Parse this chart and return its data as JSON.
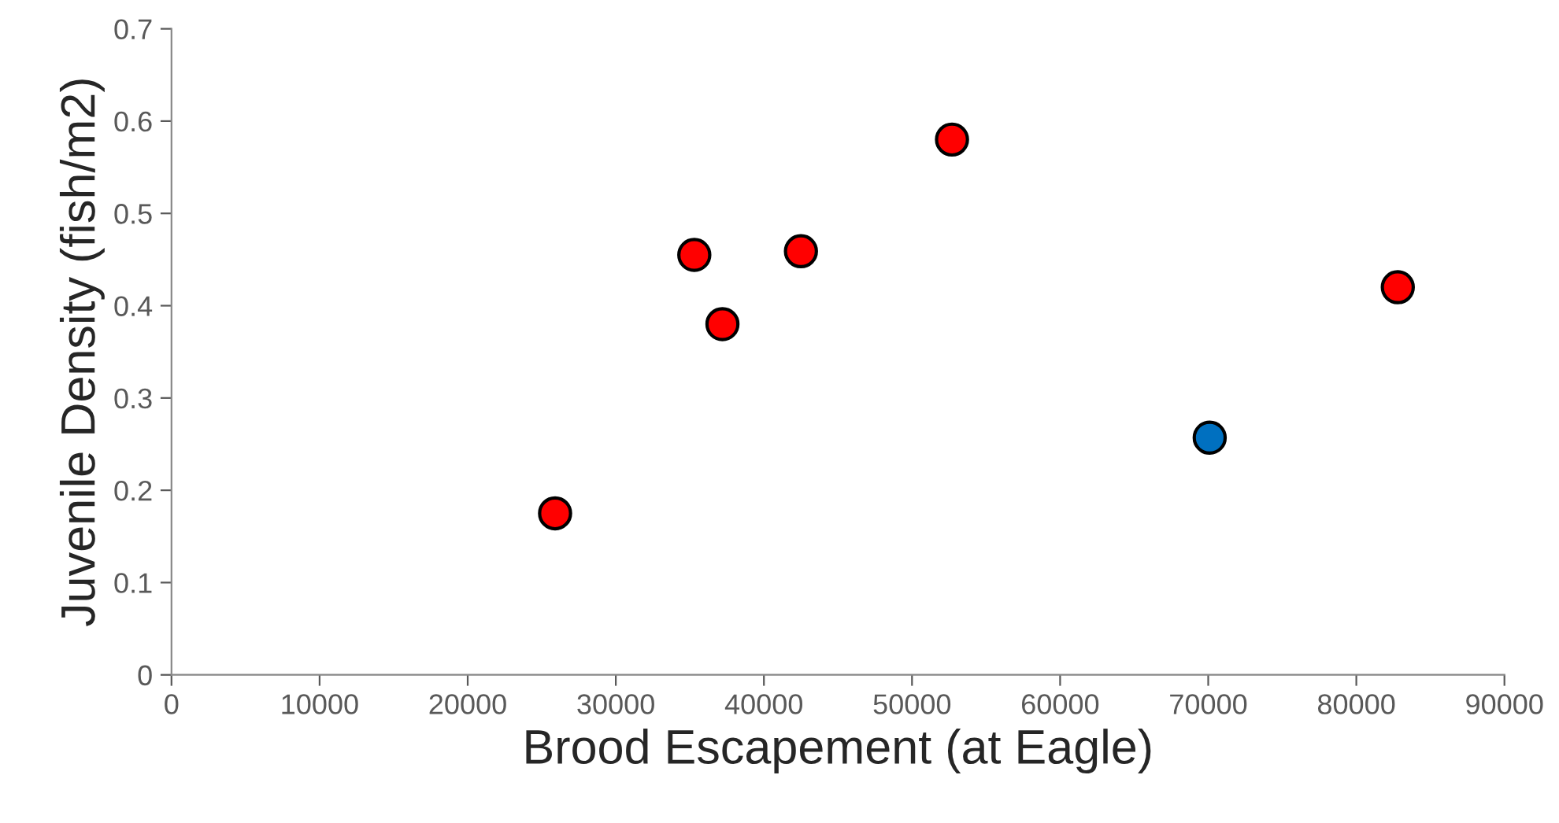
{
  "chart_data": {
    "type": "scatter",
    "xlabel": "Brood Escapement (at Eagle)",
    "ylabel": "Juvenile Density (fish/m2)",
    "xlim": [
      0,
      90000
    ],
    "xticks": [
      0,
      10000,
      20000,
      30000,
      40000,
      50000,
      60000,
      70000,
      80000,
      90000
    ],
    "ylim": [
      0,
      0.7
    ],
    "yticks": [
      0,
      0.1,
      0.2,
      0.3,
      0.4,
      0.5,
      0.6,
      0.7
    ],
    "grid": false,
    "legend": false,
    "marker": "circle",
    "series": [
      {
        "color": "#ff0000",
        "x": [
          25900,
          35300,
          37200,
          42500,
          52700,
          82800
        ],
        "values": [
          0.175,
          0.455,
          0.38,
          0.459,
          0.58,
          0.42
        ]
      },
      {
        "color": "#0070c0",
        "x": [
          70100
        ],
        "values": [
          0.257
        ]
      }
    ]
  }
}
